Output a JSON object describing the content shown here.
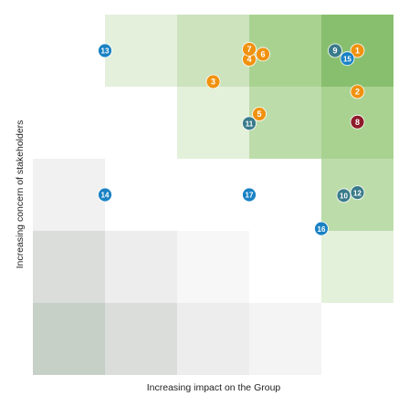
{
  "chart_data": {
    "type": "scatter",
    "title": "",
    "xlabel": "Increasing impact on the Group",
    "ylabel": "Increasing concern of stakeholders",
    "grid_levels": 5,
    "cell_shading": [
      [
        null,
        "#e4f0dc",
        "#cce3be",
        "#a9d291",
        "#88bf6e"
      ],
      [
        null,
        "#ffffff",
        "#e3f0da",
        "#bcdcaa",
        "#a9d291"
      ],
      [
        "#f1f1f1",
        "#ffffff",
        "#ffffff",
        "#ffffff",
        "#bcdcaa"
      ],
      [
        "#dbdddb",
        "#ededed",
        "#f7f7f7",
        "#ffffff",
        "#e3f0da"
      ],
      [
        "#c7d0c7",
        "#dbdddb",
        "#ededed",
        "#f4f4f4",
        null
      ]
    ],
    "category_colors": {
      "blue": "#1a82c4",
      "orange": "#f0920f",
      "teal": "#3a7b8a",
      "darkred": "#8e1a2a"
    },
    "points": [
      {
        "label": "1",
        "x": 4.5,
        "y": 4.5,
        "color": "orange"
      },
      {
        "label": "2",
        "x": 4.5,
        "y": 3.93,
        "color": "orange"
      },
      {
        "label": "3",
        "x": 2.5,
        "y": 4.07,
        "color": "orange"
      },
      {
        "label": "4",
        "x": 3.0,
        "y": 4.38,
        "color": "orange"
      },
      {
        "label": "5",
        "x": 3.14,
        "y": 3.62,
        "color": "orange"
      },
      {
        "label": "6",
        "x": 3.19,
        "y": 4.45,
        "color": "orange"
      },
      {
        "label": "7",
        "x": 3.0,
        "y": 4.52,
        "color": "orange"
      },
      {
        "label": "8",
        "x": 4.5,
        "y": 3.51,
        "color": "darkred"
      },
      {
        "label": "9",
        "x": 4.19,
        "y": 4.5,
        "color": "teal"
      },
      {
        "label": "10",
        "x": 4.31,
        "y": 2.49,
        "color": "teal"
      },
      {
        "label": "11",
        "x": 3.0,
        "y": 3.49,
        "color": "teal"
      },
      {
        "label": "12",
        "x": 4.5,
        "y": 2.53,
        "color": "teal"
      },
      {
        "label": "13",
        "x": 1.0,
        "y": 4.5,
        "color": "blue"
      },
      {
        "label": "14",
        "x": 1.0,
        "y": 2.5,
        "color": "blue"
      },
      {
        "label": "15",
        "x": 4.36,
        "y": 4.39,
        "color": "blue"
      },
      {
        "label": "16",
        "x": 4.0,
        "y": 2.03,
        "color": "blue"
      },
      {
        "label": "17",
        "x": 3.0,
        "y": 2.5,
        "color": "blue"
      }
    ]
  }
}
